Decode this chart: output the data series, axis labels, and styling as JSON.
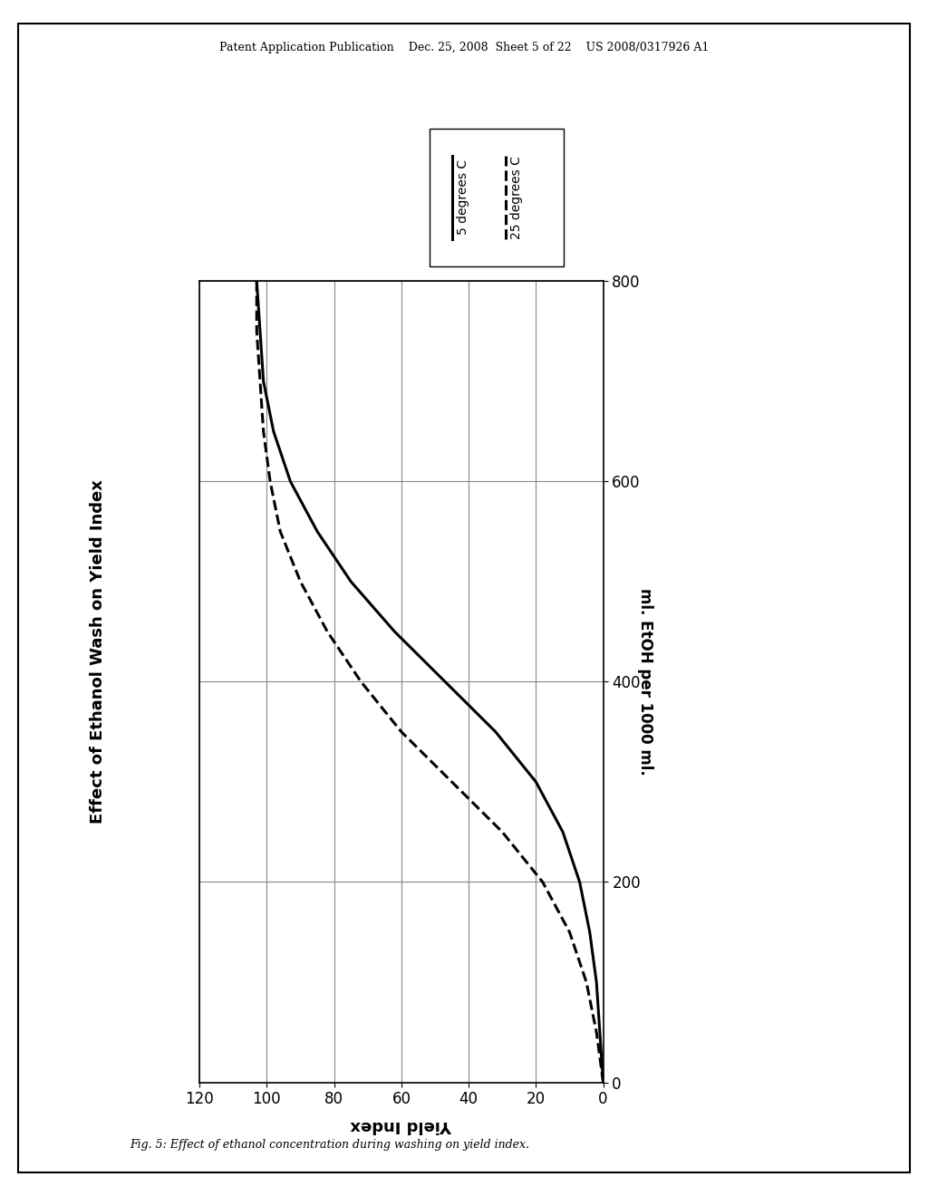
{
  "title": "Effect of Ethanol Wash on Yield Index",
  "xlabel_chart": "ml. EtOH per 1000 ml.",
  "ylabel_chart": "Yield Index",
  "xlim": [
    0,
    120
  ],
  "ylim": [
    0,
    800
  ],
  "xticks": [
    0,
    20,
    40,
    60,
    80,
    100,
    120
  ],
  "yticks": [
    0,
    200,
    400,
    600,
    800
  ],
  "line1_label": "5 degrees C",
  "line2_label": "25 degrees C",
  "background_color": "#ffffff",
  "header_text": "Patent Application Publication    Dec. 25, 2008  Sheet 5 of 22    US 2008/0317926 A1",
  "footer_text": "Fig. 5: Effect of ethanol concentration during washing on yield index.",
  "line1_etoh": [
    0,
    50,
    100,
    150,
    200,
    250,
    300,
    350,
    400,
    450,
    500,
    550,
    600,
    650,
    700,
    750,
    800
  ],
  "line1_yield": [
    0,
    1,
    2,
    4,
    7,
    12,
    20,
    32,
    47,
    62,
    75,
    85,
    93,
    98,
    101,
    102,
    103
  ],
  "line2_etoh": [
    0,
    50,
    100,
    150,
    200,
    250,
    300,
    350,
    400,
    450,
    500,
    550,
    600,
    650,
    700,
    750,
    800
  ],
  "line2_yield": [
    0,
    2,
    5,
    10,
    18,
    30,
    45,
    60,
    72,
    82,
    90,
    96,
    99,
    101,
    102,
    103,
    103
  ]
}
